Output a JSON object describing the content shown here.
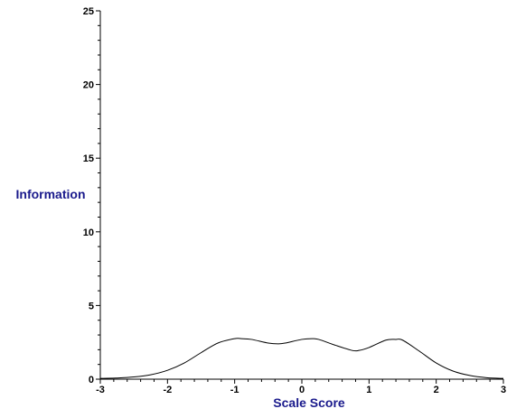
{
  "chart_data": {
    "type": "line",
    "title": "",
    "xlabel": "Scale Score",
    "ylabel": "Information",
    "xlim": [
      -3,
      3
    ],
    "ylim": [
      0,
      25
    ],
    "x_ticks": [
      -3,
      -2,
      -1,
      0,
      1,
      2,
      3
    ],
    "x_tick_labels": [
      "-3",
      "-2",
      "-1",
      "0",
      "1",
      "2",
      "3"
    ],
    "y_ticks": [
      0,
      5,
      10,
      15,
      20,
      25
    ],
    "y_tick_labels": [
      "0",
      "5",
      "10",
      "15",
      "20",
      "25"
    ],
    "grid": false,
    "colors": {
      "line": "#000000",
      "axis_title": "#1a1a8c"
    },
    "series": [
      {
        "x": [
          -3.0,
          -2.75,
          -2.5,
          -2.25,
          -2.0,
          -1.75,
          -1.5,
          -1.25,
          -1.0,
          -0.9,
          -0.75,
          -0.5,
          -0.35,
          -0.25,
          0.0,
          0.15,
          0.25,
          0.5,
          0.75,
          0.85,
          1.0,
          1.25,
          1.4,
          1.5,
          1.75,
          2.0,
          2.25,
          2.5,
          2.75,
          3.0
        ],
        "y": [
          0.05,
          0.08,
          0.15,
          0.3,
          0.6,
          1.1,
          1.8,
          2.45,
          2.75,
          2.75,
          2.7,
          2.45,
          2.4,
          2.45,
          2.7,
          2.75,
          2.7,
          2.3,
          1.95,
          1.95,
          2.15,
          2.65,
          2.7,
          2.65,
          1.9,
          1.1,
          0.55,
          0.25,
          0.1,
          0.05
        ]
      }
    ]
  }
}
